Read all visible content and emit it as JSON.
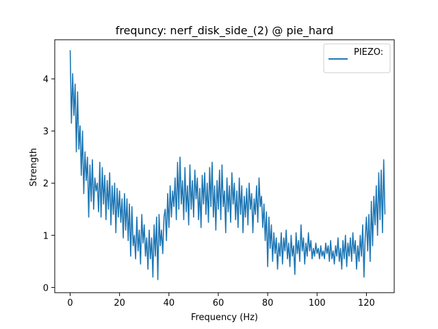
{
  "chart_data": {
    "type": "line",
    "title": "frequncy: nerf_disk_side_(2) @ pie_hard",
    "xlabel": "Frequency (Hz)",
    "ylabel": "Strength",
    "xlim": [
      -6.25,
      131.25
    ],
    "ylim": [
      -0.1,
      4.75
    ],
    "xticks": [
      0,
      20,
      40,
      60,
      80,
      100,
      120
    ],
    "yticks": [
      0,
      1,
      2,
      3,
      4
    ],
    "grid": false,
    "legend_position": "top-right",
    "series": [
      {
        "name": "PIEZO:",
        "color": "#1f77b4",
        "x_start": 0,
        "x_step": 0.5,
        "values": [
          4.55,
          3.15,
          4.1,
          3.3,
          3.9,
          2.6,
          3.75,
          2.65,
          3.1,
          2.15,
          3.0,
          1.8,
          2.6,
          2.05,
          2.5,
          1.35,
          2.35,
          1.65,
          2.45,
          1.5,
          2.1,
          1.85,
          2.0,
          1.45,
          2.4,
          1.35,
          2.3,
          1.6,
          2.15,
          1.3,
          2.05,
          1.5,
          2.2,
          1.2,
          1.95,
          1.4,
          2.0,
          1.05,
          1.9,
          1.35,
          1.85,
          1.25,
          1.7,
          0.95,
          1.8,
          1.1,
          1.7,
          0.9,
          1.6,
          0.6,
          1.55,
          0.8,
          1.0,
          0.55,
          1.35,
          0.7,
          1.1,
          0.45,
          1.4,
          0.85,
          1.2,
          0.6,
          0.95,
          0.35,
          1.1,
          0.55,
          0.95,
          0.2,
          1.2,
          0.6,
          1.35,
          0.15,
          1.4,
          0.8,
          1.1,
          0.65,
          1.35,
          1.5,
          0.9,
          1.8,
          1.15,
          1.95,
          1.35,
          1.85,
          1.55,
          2.1,
          1.3,
          2.4,
          1.5,
          2.5,
          1.6,
          2.05,
          1.3,
          2.3,
          1.45,
          1.95,
          1.2,
          2.35,
          1.5,
          2.05,
          1.35,
          2.25,
          1.7,
          2.1,
          1.3,
          1.9,
          1.15,
          2.15,
          1.6,
          2.2,
          1.4,
          2.0,
          1.25,
          2.3,
          1.55,
          2.4,
          1.35,
          1.95,
          1.1,
          2.05,
          1.5,
          2.25,
          1.3,
          2.35,
          1.55,
          1.85,
          1.05,
          2.1,
          1.45,
          1.95,
          1.25,
          2.2,
          1.6,
          2.0,
          1.3,
          1.85,
          1.15,
          2.1,
          1.4,
          1.95,
          1.05,
          1.75,
          1.35,
          1.9,
          1.2,
          2.0,
          1.5,
          1.8,
          1.05,
          1.7,
          1.4,
          1.95,
          1.25,
          2.1,
          1.55,
          1.75,
          1.15,
          1.6,
          0.9,
          1.45,
          0.4,
          1.35,
          0.75,
          1.2,
          0.5,
          1.05,
          0.65,
          0.95,
          0.35,
          0.85,
          0.6,
          1.05,
          0.45,
          0.95,
          0.7,
          1.1,
          0.55,
          0.85,
          0.4,
          1.0,
          0.6,
          0.8,
          0.25,
          1.05,
          0.65,
          0.9,
          0.5,
          1.2,
          0.7,
          0.95,
          0.45,
          0.85,
          0.6,
          1.05,
          0.7,
          0.9,
          0.55,
          0.75,
          0.6,
          0.85,
          0.65,
          0.75,
          0.55,
          0.8,
          0.6,
          0.7,
          0.55,
          0.85,
          0.65,
          0.8,
          0.5,
          0.9,
          0.55,
          0.7,
          0.45,
          0.8,
          0.6,
          0.95,
          0.5,
          0.75,
          0.35,
          0.9,
          0.55,
          1.0,
          0.4,
          0.85,
          0.6,
          0.95,
          0.5,
          1.05,
          0.65,
          0.9,
          0.35,
          0.8,
          0.5,
          1.0,
          0.6,
          1.2,
          0.2,
          0.95,
          1.35,
          0.7,
          1.4,
          0.5,
          1.65,
          0.8,
          1.75,
          1.2,
          1.95,
          1.0,
          2.2,
          1.3,
          2.25,
          1.05,
          2.45,
          1.4
        ]
      }
    ]
  }
}
